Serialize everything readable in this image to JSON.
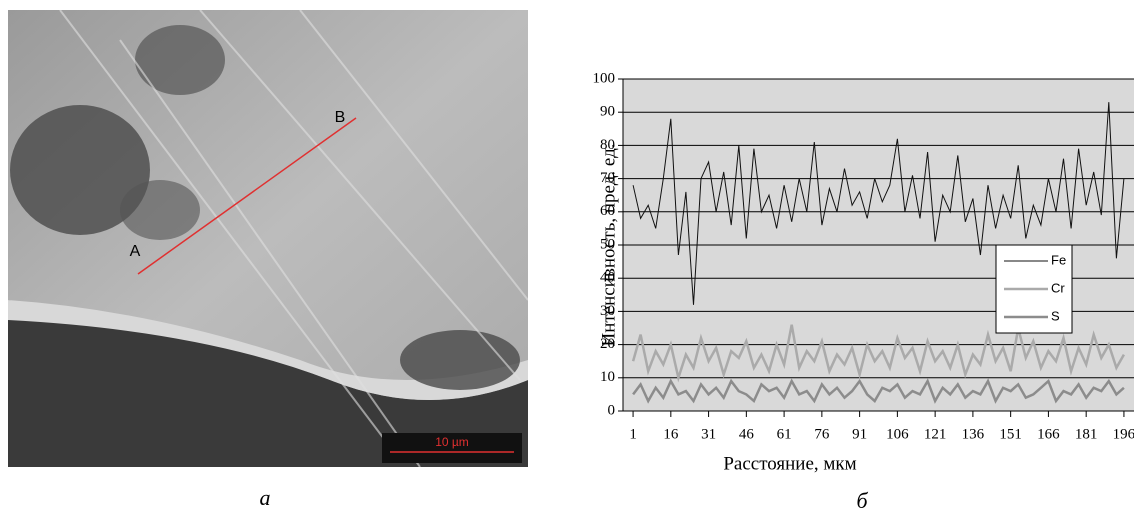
{
  "figure": {
    "image_labels": [
      "A",
      "B"
    ],
    "scale_bar": "10 µm",
    "captions": [
      "а",
      "б"
    ]
  },
  "chart_data": {
    "type": "line",
    "ylabel": "Интенсивность, пред. ед.",
    "xlabel": "Расстояние, мкм",
    "x": [
      1,
      4,
      7,
      10,
      13,
      16,
      19,
      22,
      25,
      28,
      31,
      34,
      37,
      40,
      43,
      46,
      49,
      52,
      55,
      58,
      61,
      64,
      67,
      70,
      73,
      76,
      79,
      82,
      85,
      88,
      91,
      94,
      97,
      100,
      103,
      106,
      109,
      112,
      115,
      118,
      121,
      124,
      127,
      130,
      133,
      136,
      139,
      142,
      145,
      148,
      151,
      154,
      157,
      160,
      163,
      166,
      169,
      172,
      175,
      178,
      181,
      184,
      187,
      190,
      193,
      196
    ],
    "series": [
      {
        "name": "Fe",
        "color": "#111111",
        "width": 1,
        "values": [
          68,
          58,
          62,
          55,
          70,
          88,
          47,
          66,
          32,
          70,
          75,
          60,
          72,
          56,
          80,
          52,
          79,
          60,
          65,
          55,
          68,
          57,
          70,
          60,
          81,
          56,
          67,
          60,
          73,
          62,
          66,
          58,
          70,
          63,
          68,
          82,
          60,
          71,
          58,
          78,
          51,
          65,
          60,
          77,
          57,
          64,
          47,
          68,
          55,
          65,
          58,
          74,
          52,
          62,
          56,
          70,
          60,
          76,
          55,
          79,
          62,
          72,
          59,
          93,
          46,
          70
        ]
      },
      {
        "name": "Cr",
        "color": "#aaaaaa",
        "width": 2.5,
        "values": [
          15,
          23,
          12,
          18,
          14,
          20,
          10,
          17,
          13,
          22,
          15,
          19,
          11,
          18,
          16,
          21,
          13,
          17,
          12,
          20,
          14,
          26,
          13,
          18,
          15,
          21,
          12,
          17,
          14,
          19,
          11,
          20,
          15,
          18,
          13,
          22,
          16,
          19,
          12,
          21,
          15,
          18,
          13,
          20,
          11,
          17,
          14,
          23,
          15,
          19,
          12,
          25,
          16,
          21,
          13,
          18,
          15,
          22,
          12,
          19,
          14,
          23,
          16,
          20,
          13,
          17
        ]
      },
      {
        "name": "S",
        "color": "#8c8c8c",
        "width": 2.5,
        "values": [
          5,
          8,
          3,
          7,
          4,
          9,
          5,
          6,
          3,
          8,
          5,
          7,
          4,
          9,
          6,
          5,
          3,
          8,
          6,
          7,
          4,
          9,
          5,
          6,
          3,
          8,
          5,
          7,
          4,
          6,
          9,
          5,
          3,
          7,
          6,
          8,
          4,
          6,
          5,
          9,
          3,
          7,
          5,
          8,
          4,
          6,
          5,
          9,
          3,
          7,
          6,
          8,
          4,
          5,
          7,
          9,
          3,
          6,
          5,
          8,
          4,
          7,
          6,
          9,
          5,
          7
        ]
      }
    ],
    "xlim": [
      -3,
      200
    ],
    "xticks": [
      1,
      16,
      31,
      46,
      61,
      76,
      91,
      106,
      121,
      136,
      151,
      166,
      181,
      196
    ],
    "ylim": [
      0,
      100
    ],
    "yticks": [
      0,
      10,
      20,
      30,
      40,
      50,
      60,
      70,
      80,
      90,
      100
    ],
    "grid": true,
    "legend": "right"
  }
}
